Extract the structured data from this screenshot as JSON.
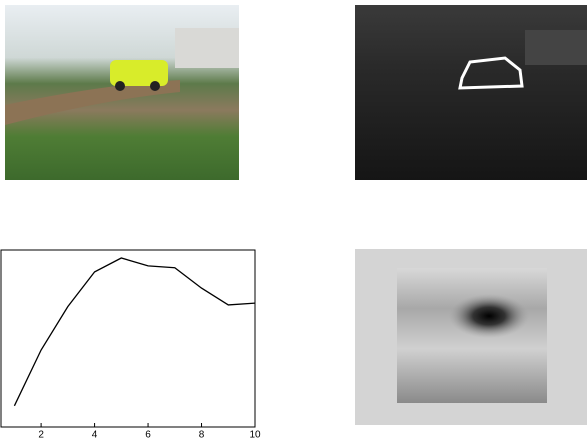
{
  "chart_data": {
    "type": "line",
    "x": [
      1,
      2,
      3,
      4,
      5,
      6,
      7,
      8,
      9,
      10
    ],
    "values": [
      0.12,
      0.435,
      0.68,
      0.876,
      0.955,
      0.91,
      0.9,
      0.785,
      0.69,
      0.7
    ],
    "color": "#000000",
    "xlim": [
      0.5,
      10
    ],
    "xticks": [
      2,
      4,
      6,
      8,
      10
    ],
    "ylim": [
      0,
      1
    ]
  }
}
